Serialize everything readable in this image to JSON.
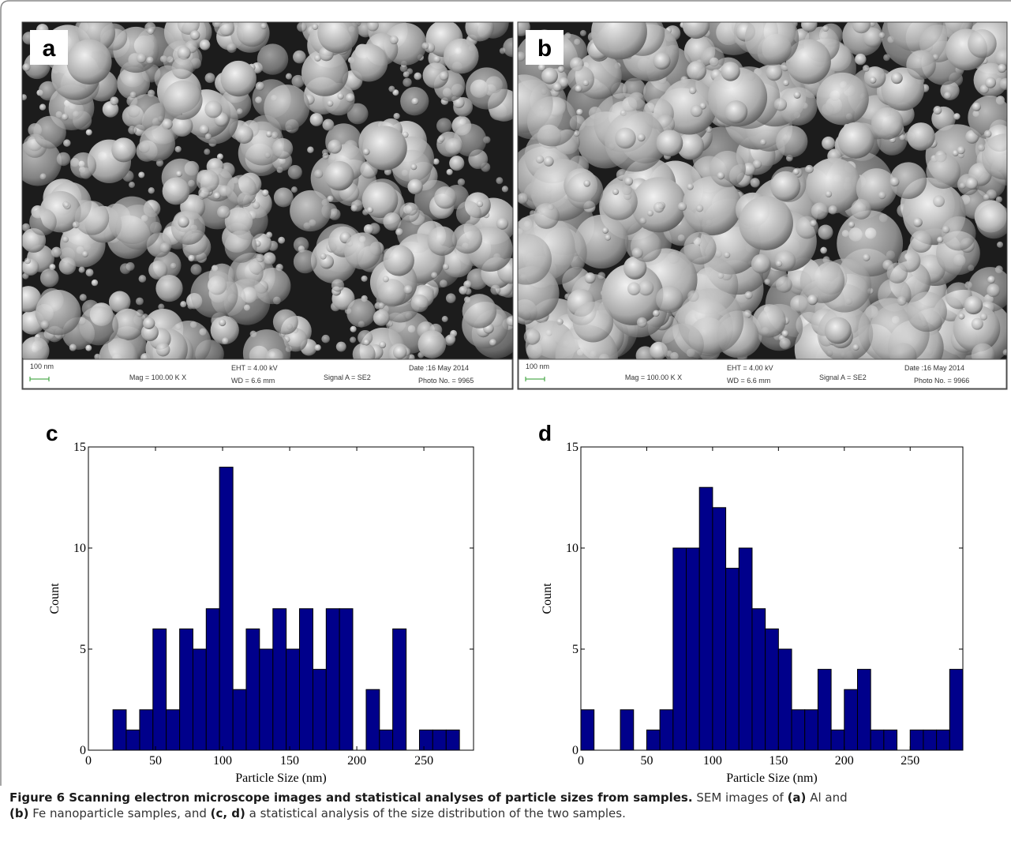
{
  "figure": {
    "panels": [
      {
        "label": "a",
        "info": {
          "scale": "100 nm",
          "mag": "Mag = 100.00 K X",
          "eht": "EHT = 4.00 kV",
          "wd": "WD = 6.6 mm",
          "signal": "Signal A = SE2",
          "date": "Date :16 May 2014",
          "photo": "Photo No. = 9965"
        }
      },
      {
        "label": "b",
        "info": {
          "scale": "100 nm",
          "mag": "Mag = 100.00 K X",
          "eht": "EHT = 4.00 kV",
          "wd": "WD = 6.6 mm",
          "signal": "Signal A = SE2",
          "date": "Date :16 May 2014",
          "photo": "Photo No. = 9966"
        }
      }
    ]
  },
  "chart_data": [
    {
      "type": "histogram",
      "panel_label": "c",
      "xlabel": "Particle Size (nm)",
      "ylabel": "Count",
      "color": "#00008b",
      "bins": [
        18.3,
        28.2,
        38.2,
        48.1,
        58.0,
        68.0,
        77.9,
        87.8,
        97.7,
        107.7,
        117.6,
        127.5,
        137.5,
        147.4,
        157.3,
        167.3,
        177.2,
        187.1,
        197.0,
        207.0,
        216.9,
        226.8,
        236.8,
        246.7,
        256.6,
        266.6,
        276.5
      ],
      "values": [
        2,
        1,
        2,
        6,
        2,
        6,
        5,
        7,
        14,
        3,
        6,
        5,
        7,
        5,
        7,
        4,
        7,
        7,
        0,
        3,
        1,
        6,
        0,
        1,
        1,
        1
      ],
      "xlim": [
        0,
        287
      ],
      "ylim": [
        0,
        15
      ],
      "xticks": [
        0,
        50,
        100,
        150,
        200,
        250
      ],
      "yticks": [
        0,
        5,
        10,
        15
      ]
    },
    {
      "type": "histogram",
      "panel_label": "d",
      "xlabel": "Particle Size (nm)",
      "ylabel": "Count",
      "color": "#00008b",
      "bins": [
        0,
        10,
        20,
        30,
        40,
        50,
        60,
        70,
        80,
        90,
        100,
        110,
        120,
        130,
        140,
        150,
        160,
        170,
        180,
        190,
        200,
        210,
        220,
        230,
        240,
        250,
        260,
        270,
        280,
        290
      ],
      "values": [
        2,
        0,
        0,
        2,
        0,
        1,
        2,
        10,
        10,
        13,
        12,
        9,
        10,
        7,
        6,
        5,
        2,
        2,
        4,
        1,
        3,
        4,
        1,
        1,
        0,
        1,
        1,
        1,
        4
      ],
      "xlim": [
        0,
        290
      ],
      "ylim": [
        0,
        15
      ],
      "xticks": [
        0,
        50,
        100,
        150,
        200,
        250
      ],
      "yticks": [
        0,
        5,
        10,
        15
      ]
    }
  ],
  "caption": {
    "lines": [
      [
        {
          "text": "Figure 6 Scanning electron microscope images and statistical analyses of particle sizes from samples.",
          "bold": true
        },
        {
          "text": " SEM images of ",
          "bold": false
        },
        {
          "text": "(a)",
          "bold": true
        },
        {
          "text": " Al and",
          "bold": false
        }
      ],
      [
        {
          "text": "(b)",
          "bold": true
        },
        {
          "text": " Fe nanoparticle samples, and ",
          "bold": false
        },
        {
          "text": "(c, d)",
          "bold": true
        },
        {
          "text": " a statistical analysis of the size distribution of the two samples.",
          "bold": false
        }
      ]
    ]
  }
}
